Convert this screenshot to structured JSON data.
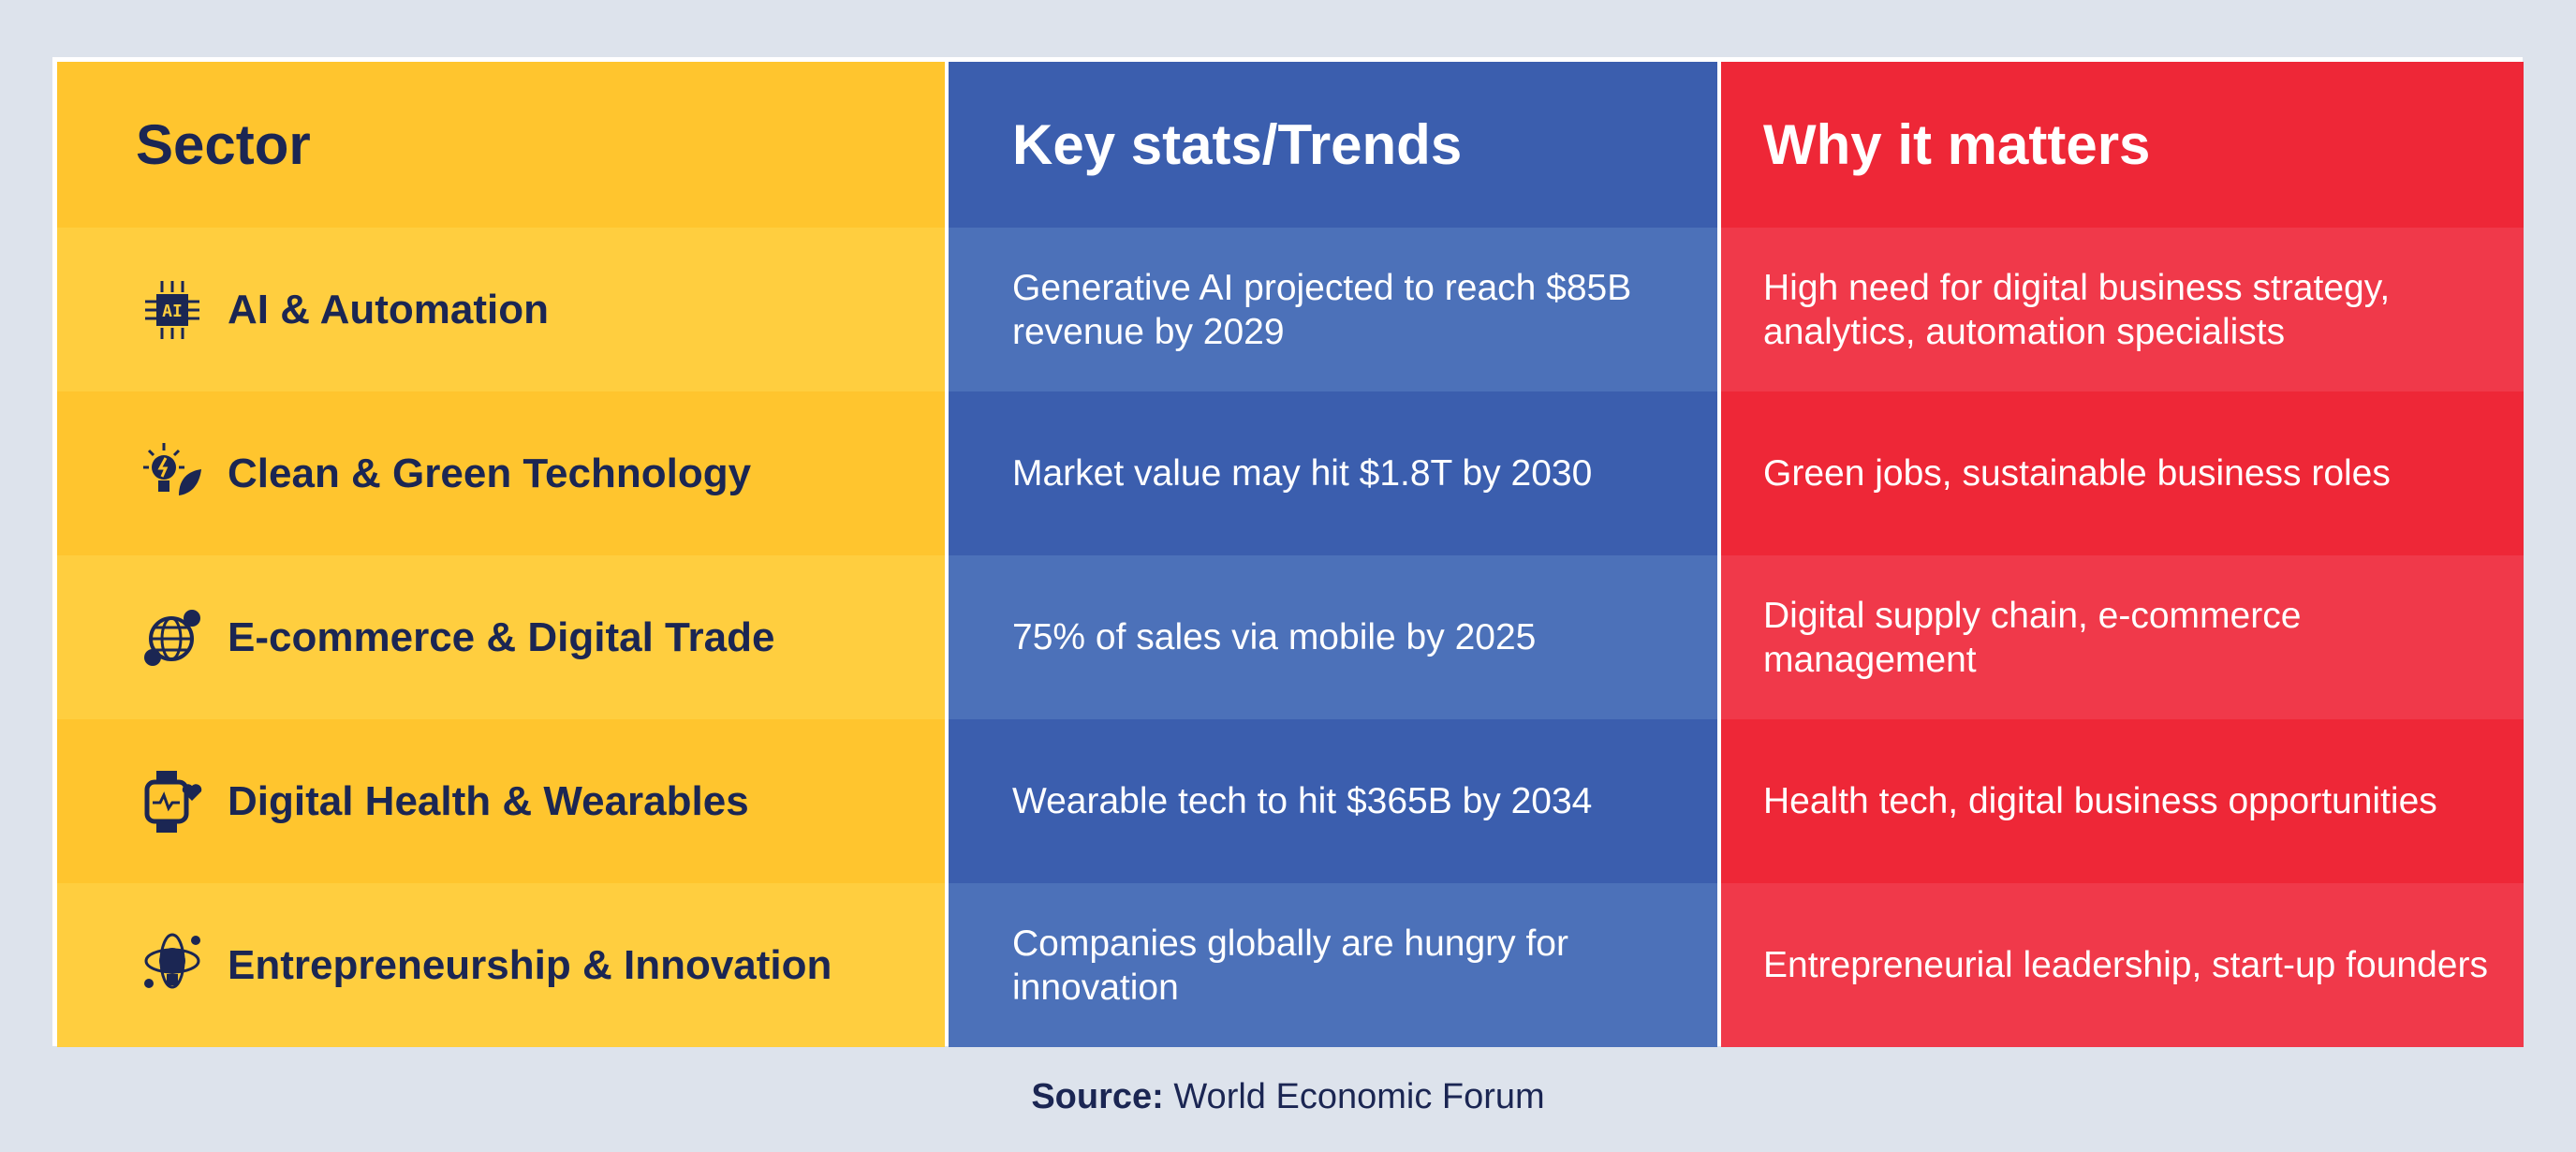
{
  "headers": {
    "sector": "Sector",
    "stats": "Key stats/Trends",
    "why": "Why it matters"
  },
  "rows": [
    {
      "icon": "ai-chip-icon",
      "sector": "AI & Automation",
      "stats": "Generative AI projected to reach $85B revenue by 2029",
      "why": "High need for digital business strategy, analytics, automation specialists"
    },
    {
      "icon": "lightbulb-leaf-icon",
      "sector": "Clean & Green Technology",
      "stats": "Market value may hit $1.8T by 2030",
      "why": "Green jobs, sustainable business roles"
    },
    {
      "icon": "globe-bitcoin-icon",
      "sector": "E-commerce & Digital Trade",
      "stats": "75% of sales via mobile by 2025",
      "why": "Digital supply chain, e-commerce management"
    },
    {
      "icon": "smartwatch-heart-icon",
      "sector": "Digital Health & Wearables",
      "stats": "Wearable tech to hit $365B by 2034",
      "why": "Health tech, digital business opportunities"
    },
    {
      "icon": "innovation-bulb-icon",
      "sector": "Entrepreneurship & Innovation",
      "stats": "Companies globally are hungry for innovation",
      "why": "Entrepreneurial leadership, start-up founders"
    }
  ],
  "source": {
    "label": "Source:",
    "value": "World Economic Forum"
  },
  "colors": {
    "yellow": "#ffc52e",
    "blue": "#3b5eae",
    "red": "#ee2737",
    "navy": "#1b2653"
  }
}
